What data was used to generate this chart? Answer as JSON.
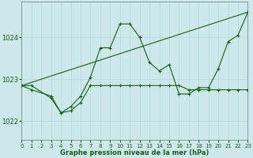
{
  "title": "Graphe pression niveau de la mer (hPa)",
  "bg_color": "#cce8ea",
  "grid_color_v": "#b8d8da",
  "grid_color_h": "#b8d8da",
  "line_color": "#1a5c1a",
  "xlim": [
    0,
    23
  ],
  "ylim": [
    1021.55,
    1024.85
  ],
  "yticks": [
    1022,
    1023,
    1024
  ],
  "xticks": [
    0,
    1,
    2,
    3,
    4,
    5,
    6,
    7,
    8,
    9,
    10,
    11,
    12,
    13,
    14,
    15,
    16,
    17,
    18,
    19,
    20,
    21,
    22,
    23
  ],
  "series": [
    {
      "x": [
        0,
        1,
        3,
        4,
        5,
        6,
        7,
        8,
        9,
        10,
        11,
        12,
        13,
        14,
        15,
        16,
        17,
        18,
        19,
        20,
        21,
        22,
        23
      ],
      "y": [
        1022.85,
        1022.85,
        1022.55,
        1022.2,
        1022.35,
        1022.6,
        1023.05,
        1023.75,
        1023.75,
        1024.32,
        1024.32,
        1024.0,
        1023.4,
        1023.2,
        1023.35,
        1022.65,
        1022.65,
        1022.8,
        1022.8,
        1023.25,
        1023.9,
        1024.05,
        1024.6
      ],
      "has_marker": true
    },
    {
      "x": [
        0,
        1,
        3,
        4,
        5,
        6,
        7,
        8,
        9,
        10,
        11,
        12,
        13,
        14,
        15,
        16,
        17,
        18,
        19,
        20,
        21,
        22,
        23
      ],
      "y": [
        1022.85,
        1022.75,
        1022.6,
        1022.2,
        1022.25,
        1022.45,
        1022.85,
        1022.85,
        1022.85,
        1022.85,
        1022.85,
        1022.85,
        1022.85,
        1022.85,
        1022.85,
        1022.85,
        1022.75,
        1022.75,
        1022.75,
        1022.75,
        1022.75,
        1022.75,
        1022.75
      ],
      "has_marker": true
    },
    {
      "x": [
        0,
        23
      ],
      "y": [
        1022.85,
        1024.6
      ],
      "has_marker": false
    }
  ]
}
